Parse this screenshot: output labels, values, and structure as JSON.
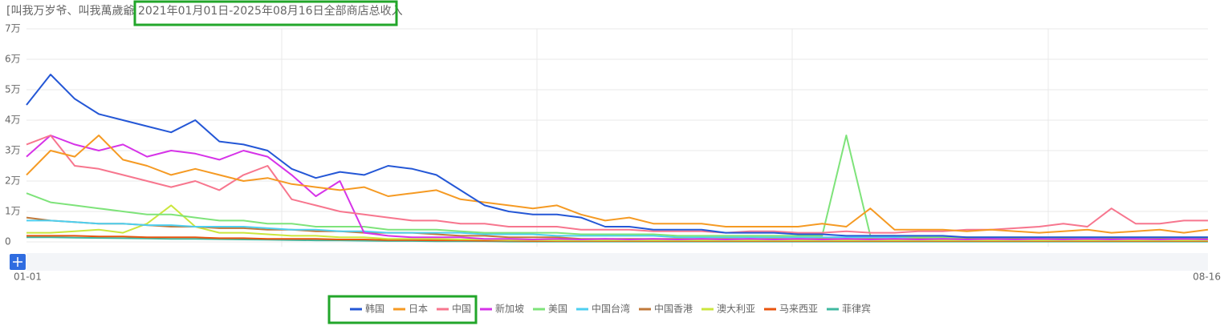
{
  "chart_data": {
    "type": "line",
    "title_prefix": "[叫我万岁爷、叫我萬歲爺",
    "title": "2021年01月01日-2025年08月16日全部商店总收入",
    "categories": [
      "01-01",
      null,
      null,
      null,
      null,
      null,
      null,
      null,
      null,
      null,
      null,
      null,
      null,
      null,
      null,
      null,
      null,
      null,
      null,
      null,
      null,
      null,
      null,
      null,
      null,
      null,
      null,
      null,
      null,
      null,
      null,
      null,
      null,
      null,
      null,
      null,
      null,
      null,
      null,
      null,
      null,
      null,
      null,
      null,
      null,
      null,
      null,
      null,
      null,
      "08-16"
    ],
    "ylim": [
      0,
      70000
    ],
    "yticks": [
      {
        "value": 0,
        "label": "0"
      },
      {
        "value": 10000,
        "label": "1万"
      },
      {
        "value": 20000,
        "label": "2万"
      },
      {
        "value": 30000,
        "label": "3万"
      },
      {
        "value": 40000,
        "label": "4万"
      },
      {
        "value": 50000,
        "label": "5万"
      },
      {
        "value": 60000,
        "label": "6万"
      },
      {
        "value": 70000,
        "label": "7万"
      }
    ],
    "grid": true,
    "series": [
      {
        "name": "韩国",
        "color": "#2457d6",
        "values": [
          45000,
          55000,
          47000,
          42000,
          40000,
          38000,
          36000,
          40000,
          33000,
          32000,
          30000,
          24000,
          21000,
          23000,
          22000,
          25000,
          24000,
          22000,
          17000,
          12000,
          10000,
          9000,
          9000,
          8000,
          5000,
          5000,
          4000,
          4000,
          4000,
          3000,
          3000,
          3000,
          2500,
          2500,
          2000,
          2000,
          2000,
          2000,
          2000,
          1500,
          1500,
          1500,
          1500,
          1500,
          1500,
          1500,
          1500,
          1500,
          1500,
          1500
        ]
      },
      {
        "name": "日本",
        "color": "#f59a23",
        "values": [
          22000,
          30000,
          28000,
          35000,
          27000,
          25000,
          22000,
          24000,
          22000,
          20000,
          21000,
          19000,
          18000,
          17000,
          18000,
          15000,
          16000,
          17000,
          14000,
          13000,
          12000,
          11000,
          12000,
          9000,
          7000,
          8000,
          6000,
          6000,
          6000,
          5000,
          5000,
          5000,
          5000,
          6000,
          5000,
          11000,
          4000,
          4000,
          4000,
          3500,
          4000,
          3500,
          3000,
          3500,
          4000,
          3000,
          3500,
          4000,
          3000,
          4000
        ]
      },
      {
        "name": "中国",
        "color": "#f7768e",
        "values": [
          32000,
          35000,
          25000,
          24000,
          22000,
          20000,
          18000,
          20000,
          17000,
          22000,
          25000,
          14000,
          12000,
          10000,
          9000,
          8000,
          7000,
          7000,
          6000,
          6000,
          5000,
          5000,
          5000,
          4000,
          4000,
          4000,
          3500,
          3500,
          3500,
          3000,
          3500,
          3500,
          3000,
          3000,
          3500,
          3000,
          3000,
          3500,
          3500,
          4000,
          4000,
          4500,
          5000,
          6000,
          5000,
          11000,
          6000,
          6000,
          7000,
          7000
        ]
      },
      {
        "name": "新加坡",
        "color": "#d633e8",
        "values": [
          28000,
          35000,
          32000,
          30000,
          32000,
          28000,
          30000,
          29000,
          27000,
          30000,
          28000,
          22000,
          15000,
          20000,
          3000,
          2000,
          1500,
          1500,
          1500,
          1000,
          1000,
          800,
          1000,
          800,
          1000,
          800,
          1000,
          800,
          1000,
          800,
          1000,
          800,
          1000,
          800,
          1000,
          800,
          1000,
          800,
          1000,
          800,
          1000,
          800,
          1000,
          800,
          1000,
          800,
          1000,
          800,
          1000,
          800
        ]
      },
      {
        "name": "美国",
        "color": "#7ee37a",
        "values": [
          16000,
          13000,
          12000,
          11000,
          10000,
          9000,
          9000,
          8000,
          7000,
          7000,
          6000,
          6000,
          5000,
          5000,
          5000,
          4000,
          4000,
          4000,
          3500,
          3000,
          3000,
          3000,
          3000,
          2500,
          2500,
          2500,
          2500,
          2000,
          2000,
          2000,
          2000,
          2000,
          2000,
          2000,
          35000,
          2000,
          2000,
          1500,
          1500,
          1500,
          1500,
          1500,
          1500,
          1500,
          1500,
          1500,
          1500,
          1500,
          1500,
          1500
        ]
      },
      {
        "name": "中国台湾",
        "color": "#4dcff0",
        "values": [
          7000,
          7000,
          6500,
          6000,
          6000,
          5500,
          5500,
          5000,
          5000,
          5000,
          4500,
          4000,
          4000,
          3500,
          3500,
          3000,
          3000,
          3000,
          3000,
          2500,
          2500,
          2500,
          2000,
          2000,
          2000,
          2000,
          2000,
          1500,
          1500,
          1500,
          1500,
          1500,
          1500,
          1500,
          1500,
          1500,
          1500,
          1500,
          1500,
          1500,
          1500,
          1500,
          1500,
          1500,
          1500,
          1500,
          1500,
          1500,
          1500,
          1500
        ]
      },
      {
        "name": "中国香港",
        "color": "#c0783a",
        "values": [
          8000,
          7000,
          6500,
          6000,
          6000,
          5500,
          5000,
          5000,
          4500,
          4500,
          4000,
          4000,
          3500,
          3500,
          3000,
          3000,
          3000,
          2500,
          2000,
          2000,
          1500,
          1500,
          1500,
          1000,
          1000,
          1000,
          1000,
          1000,
          1000,
          1000,
          1000,
          1000,
          1000,
          1000,
          1000,
          1000,
          1000,
          1000,
          1000,
          1000,
          1000,
          1000,
          1000,
          1000,
          1000,
          1000,
          1000,
          1000,
          1000,
          1000
        ]
      },
      {
        "name": "澳大利亚",
        "color": "#cbe63c",
        "values": [
          3000,
          3000,
          3500,
          4000,
          3000,
          6000,
          12000,
          5000,
          3000,
          3000,
          2500,
          2000,
          2000,
          1500,
          1500,
          1000,
          1000,
          1000,
          800,
          800,
          600,
          600,
          500,
          500,
          500,
          500,
          500,
          500,
          500,
          500,
          500,
          500,
          500,
          500,
          500,
          500,
          500,
          500,
          500,
          500,
          500,
          500,
          500,
          500,
          500,
          500,
          500,
          500,
          500,
          500
        ]
      },
      {
        "name": "马来西亚",
        "color": "#e8540e",
        "values": [
          2000,
          2000,
          2000,
          1800,
          1800,
          1500,
          1500,
          1500,
          1200,
          1200,
          1000,
          1000,
          1000,
          800,
          800,
          600,
          600,
          500,
          500,
          400,
          400,
          300,
          300,
          300,
          300,
          300,
          300,
          300,
          300,
          300,
          300,
          300,
          300,
          300,
          300,
          300,
          300,
          300,
          300,
          300,
          300,
          300,
          300,
          300,
          300,
          300,
          300,
          300,
          300,
          300
        ]
      },
      {
        "name": "菲律宾",
        "color": "#3fb8a0",
        "values": [
          1500,
          1500,
          1400,
          1300,
          1200,
          1100,
          1000,
          1000,
          900,
          800,
          700,
          600,
          500,
          500,
          400,
          300,
          300,
          200,
          200,
          200,
          100,
          100,
          100,
          100,
          100,
          100,
          100,
          100,
          100,
          100,
          100,
          100,
          100,
          100,
          100,
          100,
          100,
          100,
          100,
          100,
          100,
          100,
          100,
          100,
          100,
          100,
          100,
          100,
          100,
          100
        ]
      }
    ]
  }
}
